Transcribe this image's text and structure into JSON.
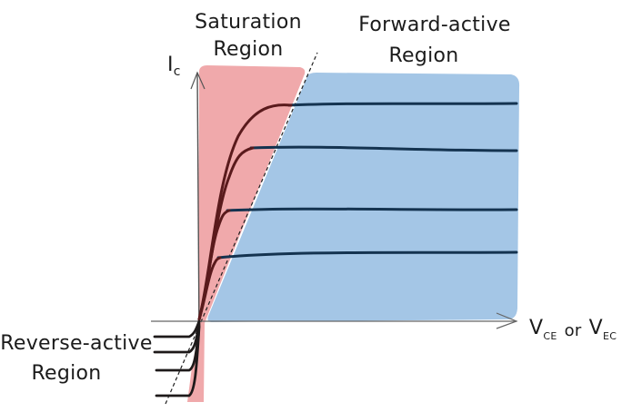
{
  "labels": {
    "saturation_line1": "Saturation",
    "saturation_line2": "Region",
    "forward_line1": "Forward-active",
    "forward_line2": "Region",
    "reverse_line1": "Reverse-active",
    "reverse_line2": "Region",
    "y_axis_main": "I",
    "y_axis_sub": "c",
    "x_axis_v1": "V",
    "x_axis_sub1": "CE",
    "x_axis_or": "or",
    "x_axis_v2": "V",
    "x_axis_sub2": "EC"
  },
  "colors": {
    "saturation_fill": "#f0a9ab",
    "forward_fill": "#a4c6e6",
    "curve_forward": "#143350",
    "curve_saturation": "#5a1a1c",
    "axis": "#555555",
    "text": "#1b1b1b"
  }
}
